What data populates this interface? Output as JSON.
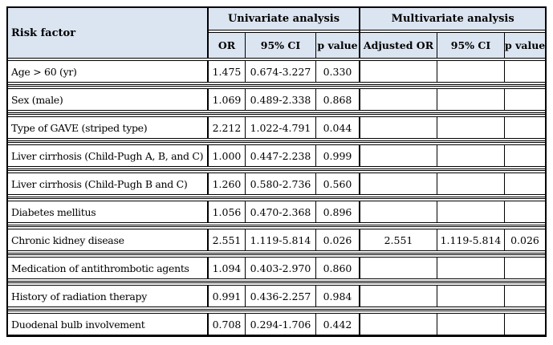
{
  "colors": {
    "header_bg": "#dbe5f1",
    "border": "#000000",
    "row_bg": "#ffffff"
  },
  "table": {
    "risk_factor_header": "Risk factor",
    "groups": [
      {
        "label": "Univariate analysis",
        "sub_headers": [
          "OR",
          "95% CI",
          "p value"
        ]
      },
      {
        "label": "Multivariate analysis",
        "sub_headers": [
          "Adjusted OR",
          "95% CI",
          "p value"
        ]
      }
    ],
    "rows": [
      {
        "label": "Age > 60 (yr)",
        "or": "1.475",
        "ci": "0.674-3.227",
        "p": "0.330",
        "aor": "",
        "aci": "",
        "ap": ""
      },
      {
        "label": "Sex (male)",
        "or": "1.069",
        "ci": "0.489-2.338",
        "p": "0.868",
        "aor": "",
        "aci": "",
        "ap": ""
      },
      {
        "label": "Type of GAVE (striped type)",
        "or": "2.212",
        "ci": "1.022-4.791",
        "p": "0.044",
        "aor": "",
        "aci": "",
        "ap": ""
      },
      {
        "label": "Liver cirrhosis (Child-Pugh A, B, and C)",
        "or": "1.000",
        "ci": "0.447-2.238",
        "p": "0.999",
        "aor": "",
        "aci": "",
        "ap": ""
      },
      {
        "label": "Liver cirrhosis (Child-Pugh B and C)",
        "or": "1.260",
        "ci": "0.580-2.736",
        "p": "0.560",
        "aor": "",
        "aci": "",
        "ap": ""
      },
      {
        "label": "Diabetes mellitus",
        "or": "1.056",
        "ci": "0.470-2.368",
        "p": "0.896",
        "aor": "",
        "aci": "",
        "ap": ""
      },
      {
        "label": "Chronic kidney disease",
        "or": "2.551",
        "ci": "1.119-5.814",
        "p": "0.026",
        "aor": "2.551",
        "aci": "1.119-5.814",
        "ap": "0.026"
      },
      {
        "label": "Medication of antithrombotic agents",
        "or": "1.094",
        "ci": "0.403-2.970",
        "p": "0.860",
        "aor": "",
        "aci": "",
        "ap": ""
      },
      {
        "label": "History of radiation therapy",
        "or": "0.991",
        "ci": "0.436-2.257",
        "p": "0.984",
        "aor": "",
        "aci": "",
        "ap": ""
      },
      {
        "label": "Duodenal bulb involvement",
        "or": "0.708",
        "ci": "0.294-1.706",
        "p": "0.442",
        "aor": "",
        "aci": "",
        "ap": ""
      }
    ]
  }
}
